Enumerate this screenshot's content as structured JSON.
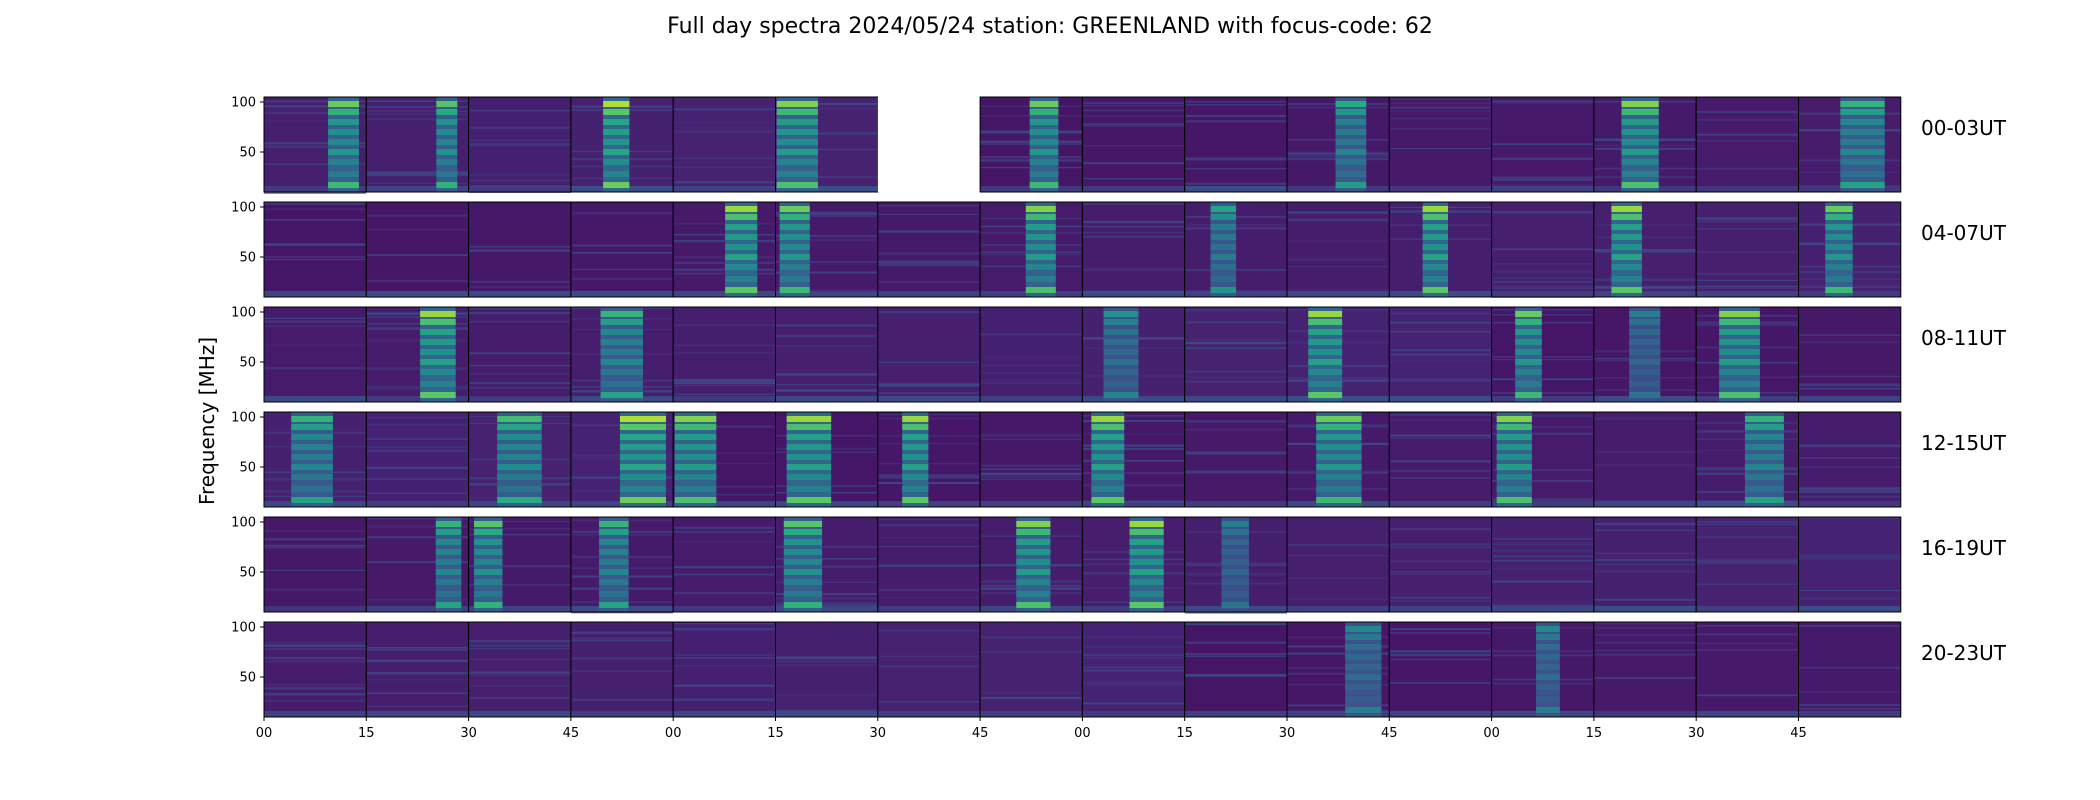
{
  "chart_data": {
    "type": "heatmap",
    "title": "Full day spectra 2024/05/24 station: GREENLAND with focus-code: 62",
    "ylabel": "Frequency [MHz]",
    "xlabel": "",
    "ylim": [
      10,
      105
    ],
    "y_ticks": [
      "50",
      "100"
    ],
    "x_ticks": [
      "00",
      "15",
      "30",
      "45",
      "00",
      "15",
      "30",
      "45",
      "00",
      "15",
      "30",
      "45",
      "00",
      "15",
      "30",
      "45"
    ],
    "colormap": "viridis",
    "grid": false,
    "panels_per_row": 16,
    "panel_minutes": 15,
    "rows": [
      {
        "label": "00-03UT",
        "burst_intensity": [
          0.75,
          0.7,
          0.05,
          0.9,
          0.05,
          0.8,
          null,
          0.75,
          0.05,
          0.1,
          0.55,
          0.2,
          0.1,
          0.8,
          0.05,
          0.6
        ]
      },
      {
        "label": "04-07UT",
        "burst_intensity": [
          0.1,
          0.05,
          0.05,
          0.1,
          0.85,
          0.75,
          0.0,
          0.8,
          0.1,
          0.5,
          0.1,
          0.85,
          0.05,
          0.85,
          0.05,
          0.75
        ]
      },
      {
        "label": "08-11UT",
        "burst_intensity": [
          0.0,
          0.85,
          0.05,
          0.6,
          0.1,
          0.05,
          0.05,
          0.05,
          0.4,
          0.05,
          0.85,
          0.05,
          0.75,
          0.3,
          0.8,
          0.05
        ]
      },
      {
        "label": "12-15UT",
        "burst_intensity": [
          0.6,
          0.05,
          0.65,
          0.9,
          0.8,
          0.85,
          0.85,
          0.1,
          0.85,
          0.05,
          0.75,
          0.05,
          0.8,
          0.1,
          0.6,
          0.05
        ]
      },
      {
        "label": "16-19UT",
        "burst_intensity": [
          0.1,
          0.6,
          0.7,
          0.6,
          0.05,
          0.7,
          0.05,
          0.8,
          0.85,
          0.3,
          0.2,
          0.1,
          0.05,
          0.05,
          0.05,
          0.05
        ]
      },
      {
        "label": "20-23UT",
        "burst_intensity": [
          0.05,
          0.05,
          0.05,
          0.05,
          0.05,
          0.05,
          0.05,
          0.05,
          0.0,
          0.05,
          0.35,
          0.05,
          0.35,
          0.05,
          0.05,
          0.05
        ]
      }
    ]
  }
}
